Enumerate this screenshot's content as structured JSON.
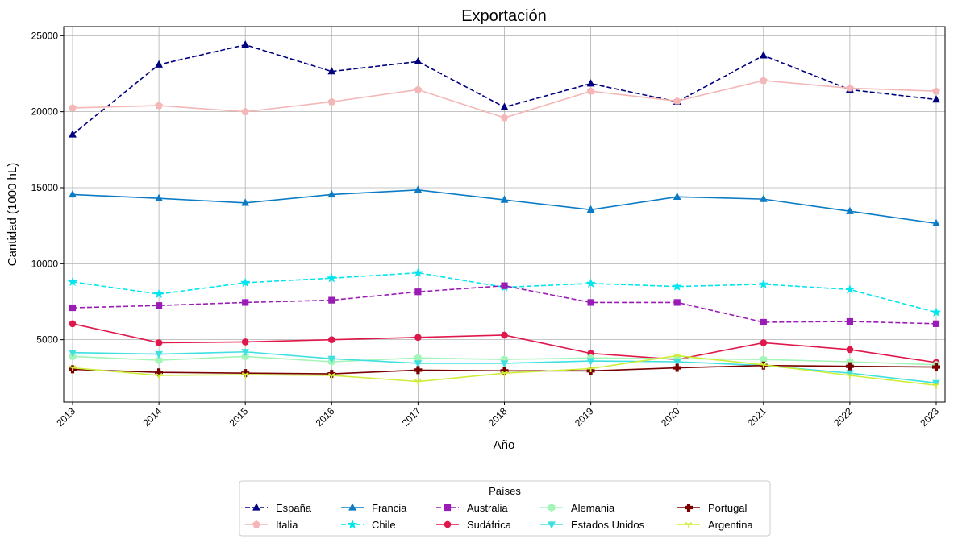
{
  "chart_data": {
    "type": "line",
    "title": "Exportación",
    "xlabel": "Año",
    "ylabel": "Cantidad (1000 hL)",
    "x": [
      2013,
      2014,
      2015,
      2016,
      2017,
      2018,
      2019,
      2020,
      2021,
      2022,
      2023
    ],
    "xticks": [
      "2013",
      "2014",
      "2015",
      "2016",
      "2017",
      "2018",
      "2019",
      "2020",
      "2021",
      "2022",
      "2023"
    ],
    "yticks": [
      5000,
      10000,
      15000,
      20000,
      25000
    ],
    "ylim": [
      900,
      25600
    ],
    "grid": true,
    "legend_title": "Países",
    "legend_position": "bottom-center",
    "series": [
      {
        "name": "España",
        "color": "#000080",
        "dash": "dashed",
        "marker": "triangle-up",
        "values": [
          18500,
          23100,
          24400,
          22650,
          23300,
          20300,
          21850,
          20650,
          23700,
          21450,
          20800
        ]
      },
      {
        "name": "Italia",
        "color": "#f4b6b6",
        "dash": "solid",
        "marker": "pentagon",
        "values": [
          20250,
          20400,
          20000,
          20650,
          21450,
          19600,
          21350,
          20700,
          22050,
          21550,
          21350
        ]
      },
      {
        "name": "Francia",
        "color": "#0a7bc4",
        "dash": "solid",
        "marker": "triangle-up",
        "values": [
          14550,
          14300,
          14000,
          14550,
          14850,
          14200,
          13550,
          14400,
          14250,
          13450,
          12650
        ]
      },
      {
        "name": "Chile",
        "color": "#00e5ee",
        "dash": "dashed",
        "marker": "star",
        "values": [
          8800,
          8000,
          8750,
          9050,
          9400,
          8450,
          8700,
          8500,
          8650,
          8300,
          6800
        ]
      },
      {
        "name": "Australia",
        "color": "#9a1bb5",
        "dash": "dashed",
        "marker": "square",
        "values": [
          7100,
          7250,
          7450,
          7600,
          8150,
          8550,
          7450,
          7450,
          6150,
          6200,
          6050
        ]
      },
      {
        "name": "Sudáfrica",
        "color": "#e0174a",
        "dash": "solid",
        "marker": "circle",
        "values": [
          6050,
          4800,
          4850,
          5000,
          5150,
          5300,
          4100,
          3700,
          4800,
          4350,
          3500
        ]
      },
      {
        "name": "Alemania",
        "color": "#a4f5b8",
        "dash": "solid",
        "marker": "hexagon",
        "values": [
          3900,
          3650,
          3900,
          3550,
          3800,
          3700,
          3800,
          3750,
          3700,
          3550,
          3350
        ]
      },
      {
        "name": "Estados Unidos",
        "color": "#3fe0e0",
        "dash": "solid",
        "marker": "triangle-down",
        "values": [
          4150,
          4050,
          4200,
          3750,
          3450,
          3450,
          3600,
          3550,
          3300,
          2800,
          2150
        ]
      },
      {
        "name": "Portugal",
        "color": "#7a0000",
        "dash": "solid",
        "marker": "plus",
        "values": [
          3050,
          2850,
          2800,
          2750,
          3000,
          2950,
          2950,
          3150,
          3300,
          3250,
          3200
        ]
      },
      {
        "name": "Argentina",
        "color": "#cdee38",
        "dash": "solid",
        "marker": "tri-down",
        "values": [
          3150,
          2650,
          2700,
          2650,
          2250,
          2800,
          3100,
          3950,
          3350,
          2650,
          2000
        ]
      }
    ]
  }
}
